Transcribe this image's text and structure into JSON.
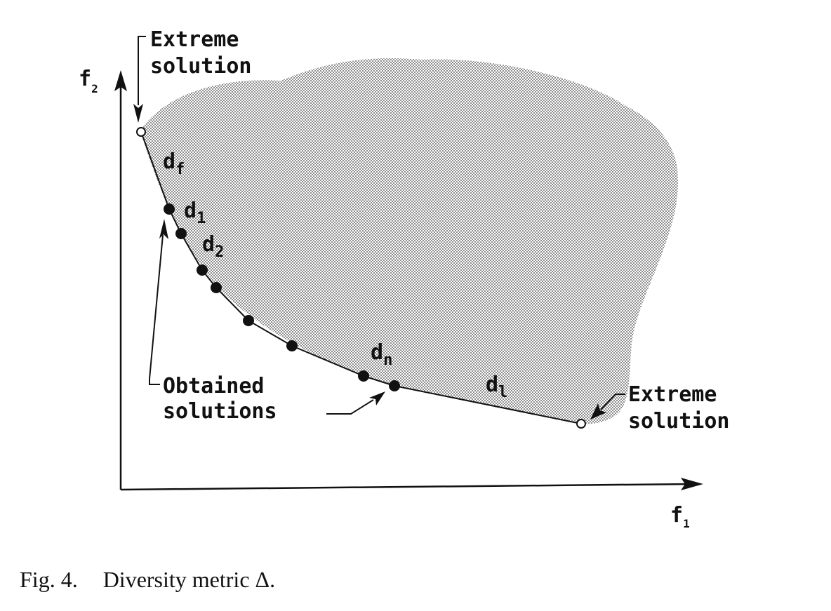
{
  "diagram": {
    "axes": {
      "y_label": "f",
      "y_sub": "2",
      "x_label": "f",
      "x_sub": "1"
    },
    "labels": {
      "extreme_top_line1": "Extreme",
      "extreme_top_line2": "solution",
      "extreme_right_line1": "Extreme",
      "extreme_right_line2": "solution",
      "obtained_line1": "Obtained",
      "obtained_line2": "solutions"
    },
    "distances": [
      {
        "base": "d",
        "sub": "f"
      },
      {
        "base": "d",
        "sub": "1"
      },
      {
        "base": "d",
        "sub": "2"
      },
      {
        "base": "d",
        "sub": "n"
      },
      {
        "base": "d",
        "sub": "l"
      }
    ],
    "colors": {
      "ink": "#111111",
      "region": "#c9c9c9"
    }
  },
  "caption": {
    "number": "Fig. 4.",
    "text": "Diversity metric Δ."
  }
}
